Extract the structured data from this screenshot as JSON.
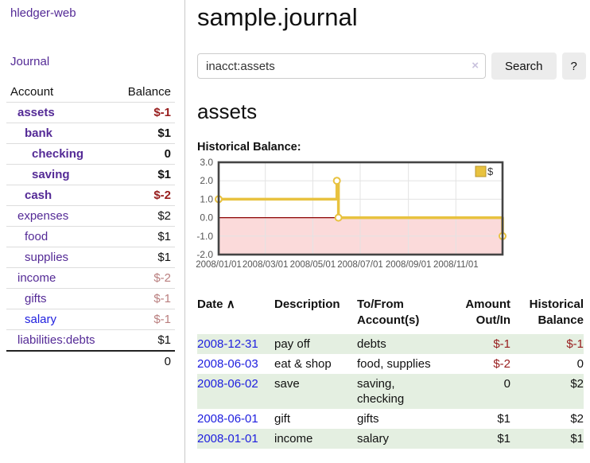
{
  "app": {
    "brand": "hledger-web",
    "nav_journal": "Journal"
  },
  "sidebar": {
    "table": {
      "headers": {
        "account": "Account",
        "balance": "Balance"
      },
      "rows": [
        {
          "account": "assets",
          "balance": "$-1",
          "indent": 1,
          "bold": true,
          "tone": "neg",
          "name_color": "purple"
        },
        {
          "account": "bank",
          "balance": "$1",
          "indent": 2,
          "bold": true,
          "tone": "",
          "name_color": "purple"
        },
        {
          "account": "checking",
          "balance": "0",
          "indent": 3,
          "bold": true,
          "tone": "",
          "name_color": "purple"
        },
        {
          "account": "saving",
          "balance": "$1",
          "indent": 3,
          "bold": true,
          "tone": "",
          "name_color": "purple"
        },
        {
          "account": "cash",
          "balance": "$-2",
          "indent": 2,
          "bold": true,
          "tone": "neg",
          "name_color": "purple"
        },
        {
          "account": "expenses",
          "balance": "$2",
          "indent": 1,
          "bold": false,
          "tone": "",
          "name_color": "purple"
        },
        {
          "account": "food",
          "balance": "$1",
          "indent": 2,
          "bold": false,
          "tone": "",
          "name_color": "purple"
        },
        {
          "account": "supplies",
          "balance": "$1",
          "indent": 2,
          "bold": false,
          "tone": "",
          "name_color": "purple"
        },
        {
          "account": "income",
          "balance": "$-2",
          "indent": 1,
          "bold": false,
          "tone": "soft",
          "name_color": "purple"
        },
        {
          "account": "gifts",
          "balance": "$-1",
          "indent": 2,
          "bold": false,
          "tone": "soft",
          "name_color": "purple"
        },
        {
          "account": "salary",
          "balance": "$-1",
          "indent": 2,
          "bold": false,
          "tone": "soft",
          "name_color": "blue"
        },
        {
          "account": "liabilities:debts",
          "balance": "$1",
          "indent": 1,
          "bold": false,
          "tone": "",
          "name_color": "purple"
        }
      ],
      "total": "0"
    }
  },
  "header": {
    "title": "sample.journal"
  },
  "search": {
    "value": "inacct:assets",
    "clear_icon": "×",
    "button_label": "Search",
    "help_label": "?"
  },
  "account_page": {
    "heading": "assets",
    "chart_label": "Historical Balance:"
  },
  "chart_data": {
    "type": "line",
    "step": true,
    "title": "Historical Balance",
    "legend": {
      "label": "$",
      "position": "top-right"
    },
    "ylim": [
      -2,
      3
    ],
    "xlim_days": [
      0,
      365
    ],
    "y_ticks": [
      3.0,
      2.0,
      1.0,
      0.0,
      -1.0,
      -2.0
    ],
    "x_ticks": [
      {
        "day": 0,
        "label": "2008/01/01"
      },
      {
        "day": 60,
        "label": "2008/03/01"
      },
      {
        "day": 121,
        "label": "2008/05/01"
      },
      {
        "day": 182,
        "label": "2008/07/01"
      },
      {
        "day": 244,
        "label": "2008/09/01"
      },
      {
        "day": 305,
        "label": "2008/11/01"
      }
    ],
    "series": [
      {
        "name": "$",
        "color": "#e8c23f",
        "legend_box_border": "#b8962e",
        "points": [
          {
            "date": "2008-01-01",
            "day": 0,
            "value": 1,
            "marker": true
          },
          {
            "date": "2008-06-01",
            "day": 152,
            "value": 2,
            "marker": true
          },
          {
            "date": "2008-06-02",
            "day": 153,
            "value": 2,
            "marker": false
          },
          {
            "date": "2008-06-03",
            "day": 154,
            "value": 0,
            "marker": true
          },
          {
            "date": "2008-12-31",
            "day": 365,
            "value": -1,
            "marker": true
          }
        ]
      }
    ],
    "grid": true,
    "negative_region_color": "#fbdada",
    "zero_line_color": "#8b0000",
    "border_color": "#444",
    "axis_label_color": "#545454"
  },
  "transactions": {
    "columns": [
      "Date",
      "Description",
      "To/From Account(s)",
      "Amount Out/In",
      "Historical Balance"
    ],
    "sort_indicator": "∧",
    "rows": [
      {
        "date": "2008-12-31",
        "description": "pay off",
        "accounts": "debts",
        "amount": "$-1",
        "amount_neg": true,
        "balance": "$-1",
        "balance_neg": true
      },
      {
        "date": "2008-06-03",
        "description": "eat & shop",
        "accounts": "food, supplies",
        "amount": "$-2",
        "amount_neg": true,
        "balance": "0",
        "balance_neg": false
      },
      {
        "date": "2008-06-02",
        "description": "save",
        "accounts": "saving, checking",
        "amount": "0",
        "amount_neg": false,
        "balance": "$2",
        "balance_neg": false
      },
      {
        "date": "2008-06-01",
        "description": "gift",
        "accounts": "gifts",
        "amount": "$1",
        "amount_neg": false,
        "balance": "$2",
        "balance_neg": false
      },
      {
        "date": "2008-01-01",
        "description": "income",
        "accounts": "salary",
        "amount": "$1",
        "amount_neg": false,
        "balance": "$1",
        "balance_neg": false
      }
    ]
  }
}
